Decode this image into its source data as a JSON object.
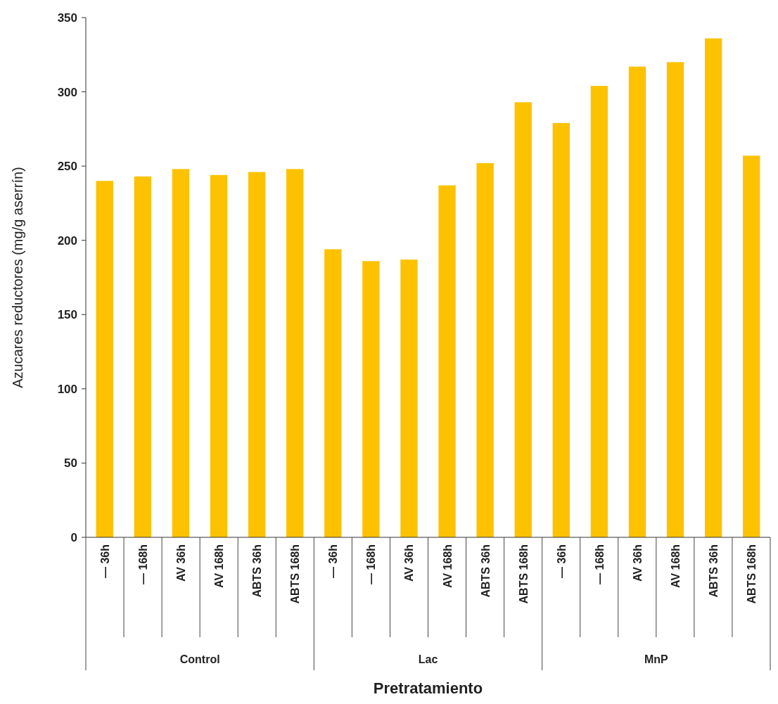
{
  "chart_data": {
    "type": "bar",
    "xlabel": "Pretratamiento",
    "ylabel": "Azucares reductores (mg/g aserrín)",
    "categories": [
      "— 36h",
      "— 168h",
      "AV 36h",
      "AV 168h",
      "ABTS 36h",
      "ABTS 168h",
      "— 36h",
      "— 168h",
      "AV 36h",
      "AV 168h",
      "ABTS 36h",
      "ABTS 168h",
      "— 36h",
      "— 168h",
      "AV 36h",
      "AV 168h",
      "ABTS 36h",
      "ABTS 168h"
    ],
    "values": [
      240,
      243,
      248,
      244,
      246,
      248,
      194,
      186,
      187,
      237,
      252,
      293,
      279,
      304,
      317,
      320,
      336,
      257
    ],
    "color": "#fcc200",
    "ylim": [
      0,
      350
    ],
    "yticks": [
      0,
      50,
      100,
      150,
      200,
      250,
      300,
      350
    ],
    "grid": false,
    "annotations": [
      "Control",
      "Lac",
      "MnP"
    ]
  }
}
